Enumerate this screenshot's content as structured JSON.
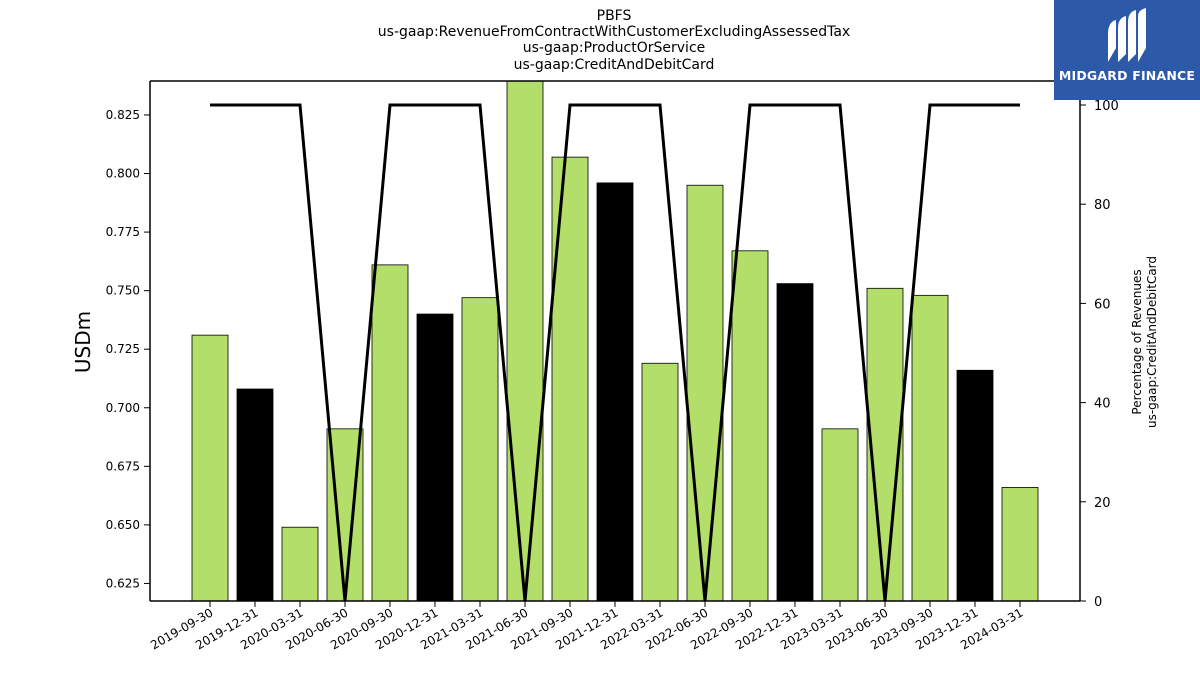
{
  "chart_data": {
    "type": "bar",
    "title_lines": [
      "PBFS",
      "us-gaap:RevenueFromContractWithCustomerExcludingAssessedTax",
      "us-gaap:ProductOrService",
      "us-gaap:CreditAndDebitCard"
    ],
    "ylabel": "USDm",
    "ylabel_right": [
      "Percentage of Revenues",
      "us-gaap:CreditAndDebitCard"
    ],
    "categories": [
      "2019-09-30",
      "2019-12-31",
      "2020-03-31",
      "2020-06-30",
      "2020-09-30",
      "2020-12-31",
      "2021-03-31",
      "2021-06-30",
      "2021-09-30",
      "2021-12-31",
      "2022-03-31",
      "2022-06-30",
      "2022-09-30",
      "2022-12-31",
      "2023-03-31",
      "2023-06-30",
      "2023-09-30",
      "2023-12-31",
      "2024-03-31"
    ],
    "values": [
      0.731,
      0.708,
      0.649,
      0.691,
      0.761,
      0.74,
      0.747,
      0.84,
      0.807,
      0.796,
      0.719,
      0.795,
      0.767,
      0.753,
      0.691,
      0.751,
      0.748,
      0.716,
      0.666
    ],
    "bar_colors": [
      "#b3de69",
      "#000000",
      "#b3de69",
      "#b3de69",
      "#b3de69",
      "#000000",
      "#b3de69",
      "#b3de69",
      "#b3de69",
      "#000000",
      "#b3de69",
      "#b3de69",
      "#b3de69",
      "#000000",
      "#b3de69",
      "#b3de69",
      "#b3de69",
      "#000000",
      "#b3de69"
    ],
    "percent_series": [
      100,
      100,
      100,
      0,
      100,
      100,
      100,
      0,
      100,
      100,
      100,
      0,
      100,
      100,
      100,
      0,
      100,
      100,
      100
    ],
    "ylim": [
      0.6175,
      0.8395
    ],
    "yticks": [
      "0.625",
      "0.650",
      "0.675",
      "0.700",
      "0.725",
      "0.750",
      "0.775",
      "0.800",
      "0.825"
    ],
    "ylim_right": [
      0,
      100
    ],
    "yticks_right": [
      "0",
      "20",
      "40",
      "60",
      "80",
      "100"
    ],
    "grid": false
  },
  "logo": {
    "text": "MIDGARD FINANCE",
    "color": "#2c5aa8"
  }
}
